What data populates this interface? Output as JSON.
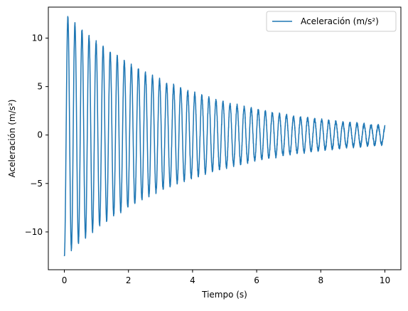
{
  "chart_data": {
    "type": "line",
    "title": "",
    "xlabel": "Tiempo (s)",
    "ylabel": "Aceleración (m/s²)",
    "xlim": [
      -0.5,
      10.5
    ],
    "ylim": [
      -13.9,
      13.2
    ],
    "xticks": [
      0,
      2,
      4,
      6,
      8,
      10
    ],
    "yticks": [
      -10,
      -5,
      0,
      5,
      10
    ],
    "xtick_labels": [
      "0",
      "2",
      "4",
      "6",
      "8",
      "10"
    ],
    "ytick_labels": [
      "−10",
      "−5",
      "0",
      "5",
      "10"
    ],
    "grid": false,
    "legend": "upper-right",
    "series": [
      {
        "name": "Aceleración (m/s²)",
        "color": "#1f77b4",
        "signal": {
          "t_start": 0,
          "t_end": 10,
          "initial_value": -12.5,
          "peak_at_0_1s": 12.2,
          "oscillation_period_s": 0.22,
          "start_amplitude": 12.5,
          "end_amplitude": 0.9,
          "noise": 0.35
        }
      }
    ]
  }
}
